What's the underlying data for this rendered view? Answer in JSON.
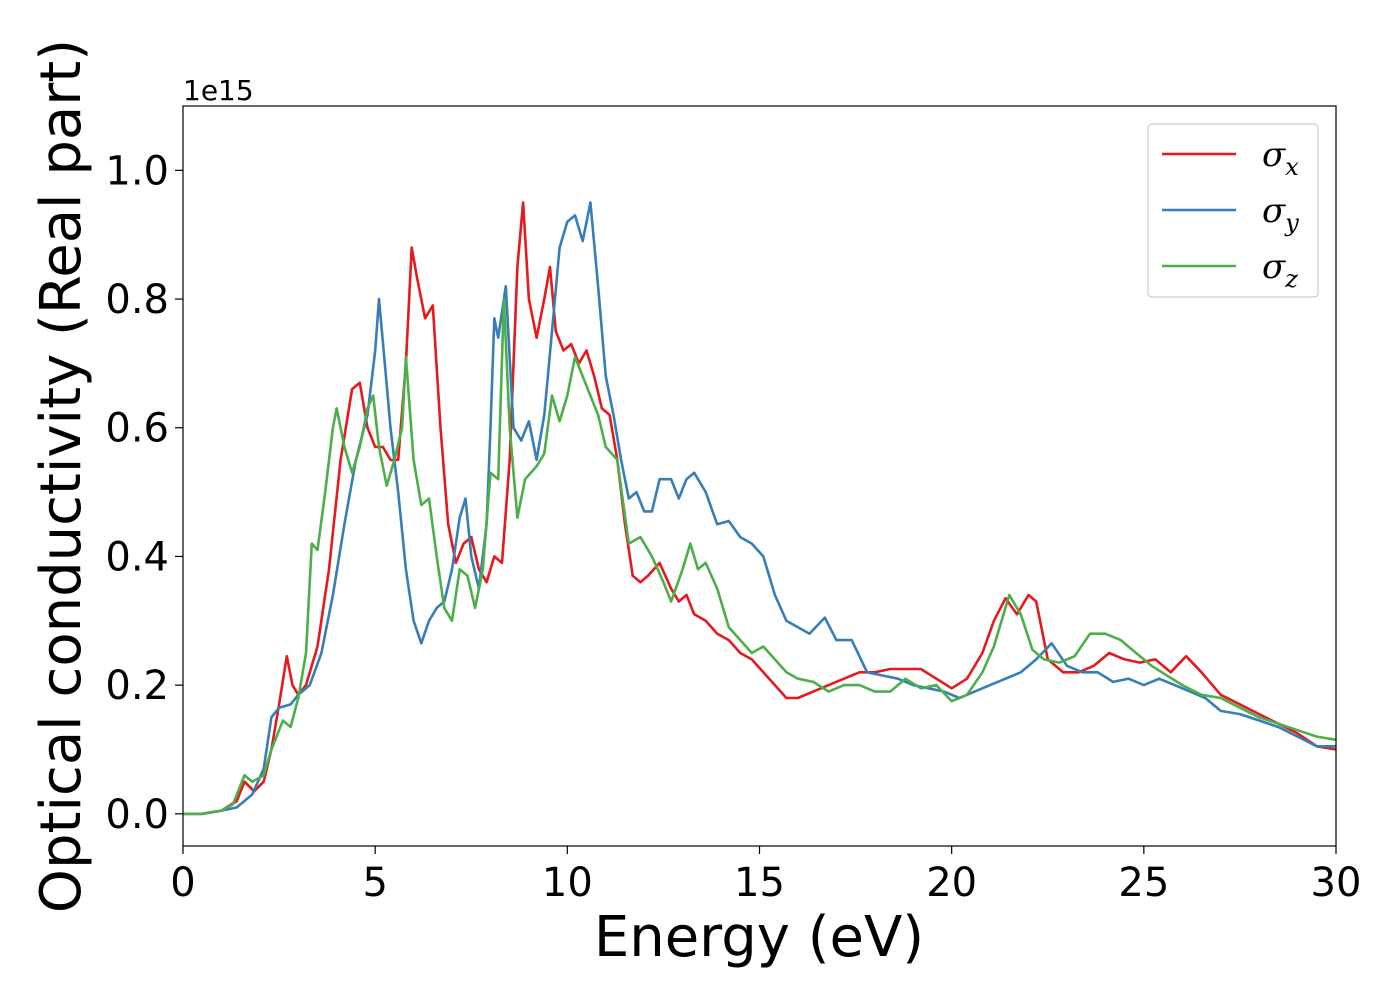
{
  "chart_data": {
    "type": "line",
    "xlabel": "Energy (eV)",
    "ylabel": "Optical conductivity (Real part)",
    "y_offset_label": "1e15",
    "xlim": [
      0,
      30
    ],
    "ylim": [
      -0.05,
      1.1
    ],
    "x_ticks": [
      0,
      5,
      10,
      15,
      20,
      25,
      30
    ],
    "x_tick_labels": [
      "0",
      "5",
      "10",
      "15",
      "20",
      "25",
      "30"
    ],
    "y_ticks": [
      0.0,
      0.2,
      0.4,
      0.6,
      0.8,
      1.0
    ],
    "y_tick_labels": [
      "0.0",
      "0.2",
      "0.4",
      "0.6",
      "0.8",
      "1.0"
    ],
    "grid": false,
    "legend_position": "top-right",
    "series": [
      {
        "name": "σx",
        "symbol": "σ",
        "subscript": "x",
        "color": "#e41a1c",
        "points": [
          [
            0,
            0
          ],
          [
            0.5,
            0
          ],
          [
            1.0,
            0.005
          ],
          [
            1.4,
            0.02
          ],
          [
            1.6,
            0.05
          ],
          [
            1.85,
            0.035
          ],
          [
            2.1,
            0.05
          ],
          [
            2.3,
            0.1
          ],
          [
            2.5,
            0.17
          ],
          [
            2.7,
            0.245
          ],
          [
            2.85,
            0.2
          ],
          [
            3.0,
            0.185
          ],
          [
            3.2,
            0.2
          ],
          [
            3.5,
            0.26
          ],
          [
            3.8,
            0.38
          ],
          [
            4.1,
            0.55
          ],
          [
            4.4,
            0.66
          ],
          [
            4.6,
            0.67
          ],
          [
            4.8,
            0.6
          ],
          [
            5.0,
            0.57
          ],
          [
            5.2,
            0.57
          ],
          [
            5.4,
            0.55
          ],
          [
            5.6,
            0.55
          ],
          [
            5.8,
            0.7
          ],
          [
            5.95,
            0.88
          ],
          [
            6.1,
            0.83
          ],
          [
            6.3,
            0.77
          ],
          [
            6.5,
            0.79
          ],
          [
            6.7,
            0.6
          ],
          [
            6.9,
            0.45
          ],
          [
            7.1,
            0.39
          ],
          [
            7.3,
            0.42
          ],
          [
            7.5,
            0.43
          ],
          [
            7.7,
            0.38
          ],
          [
            7.9,
            0.36
          ],
          [
            8.1,
            0.4
          ],
          [
            8.3,
            0.39
          ],
          [
            8.5,
            0.55
          ],
          [
            8.7,
            0.85
          ],
          [
            8.85,
            0.95
          ],
          [
            9.0,
            0.8
          ],
          [
            9.2,
            0.74
          ],
          [
            9.4,
            0.8
          ],
          [
            9.55,
            0.85
          ],
          [
            9.7,
            0.75
          ],
          [
            9.9,
            0.72
          ],
          [
            10.1,
            0.73
          ],
          [
            10.3,
            0.7
          ],
          [
            10.5,
            0.72
          ],
          [
            10.7,
            0.68
          ],
          [
            10.9,
            0.63
          ],
          [
            11.1,
            0.62
          ],
          [
            11.3,
            0.55
          ],
          [
            11.5,
            0.45
          ],
          [
            11.7,
            0.37
          ],
          [
            11.9,
            0.36
          ],
          [
            12.1,
            0.37
          ],
          [
            12.4,
            0.39
          ],
          [
            12.7,
            0.35
          ],
          [
            12.9,
            0.33
          ],
          [
            13.1,
            0.34
          ],
          [
            13.3,
            0.31
          ],
          [
            13.6,
            0.3
          ],
          [
            13.9,
            0.28
          ],
          [
            14.2,
            0.27
          ],
          [
            14.5,
            0.25
          ],
          [
            14.8,
            0.24
          ],
          [
            15.1,
            0.22
          ],
          [
            15.4,
            0.2
          ],
          [
            15.7,
            0.18
          ],
          [
            16.0,
            0.18
          ],
          [
            16.4,
            0.19
          ],
          [
            16.8,
            0.2
          ],
          [
            17.2,
            0.21
          ],
          [
            17.6,
            0.22
          ],
          [
            18.0,
            0.22
          ],
          [
            18.4,
            0.225
          ],
          [
            18.8,
            0.225
          ],
          [
            19.2,
            0.225
          ],
          [
            19.6,
            0.21
          ],
          [
            20.0,
            0.195
          ],
          [
            20.4,
            0.21
          ],
          [
            20.8,
            0.25
          ],
          [
            21.1,
            0.3
          ],
          [
            21.4,
            0.335
          ],
          [
            21.7,
            0.31
          ],
          [
            22.0,
            0.34
          ],
          [
            22.2,
            0.33
          ],
          [
            22.5,
            0.24
          ],
          [
            22.9,
            0.22
          ],
          [
            23.3,
            0.22
          ],
          [
            23.7,
            0.23
          ],
          [
            24.1,
            0.25
          ],
          [
            24.5,
            0.24
          ],
          [
            24.9,
            0.235
          ],
          [
            25.3,
            0.24
          ],
          [
            25.7,
            0.22
          ],
          [
            26.1,
            0.245
          ],
          [
            26.5,
            0.22
          ],
          [
            27.0,
            0.185
          ],
          [
            27.5,
            0.17
          ],
          [
            28.0,
            0.155
          ],
          [
            28.5,
            0.14
          ],
          [
            29.0,
            0.125
          ],
          [
            29.5,
            0.105
          ],
          [
            30.0,
            0.1
          ]
        ]
      },
      {
        "name": "σy",
        "symbol": "σ",
        "subscript": "y",
        "color": "#377eb8",
        "points": [
          [
            0,
            0
          ],
          [
            0.5,
            0
          ],
          [
            1.0,
            0.005
          ],
          [
            1.4,
            0.01
          ],
          [
            1.8,
            0.03
          ],
          [
            2.1,
            0.07
          ],
          [
            2.3,
            0.15
          ],
          [
            2.5,
            0.165
          ],
          [
            2.8,
            0.17
          ],
          [
            3.0,
            0.185
          ],
          [
            3.3,
            0.2
          ],
          [
            3.6,
            0.25
          ],
          [
            3.9,
            0.34
          ],
          [
            4.2,
            0.45
          ],
          [
            4.5,
            0.55
          ],
          [
            4.8,
            0.62
          ],
          [
            5.0,
            0.72
          ],
          [
            5.1,
            0.8
          ],
          [
            5.25,
            0.7
          ],
          [
            5.4,
            0.6
          ],
          [
            5.6,
            0.5
          ],
          [
            5.8,
            0.38
          ],
          [
            6.0,
            0.3
          ],
          [
            6.2,
            0.265
          ],
          [
            6.4,
            0.3
          ],
          [
            6.6,
            0.32
          ],
          [
            6.8,
            0.33
          ],
          [
            7.0,
            0.38
          ],
          [
            7.2,
            0.46
          ],
          [
            7.35,
            0.49
          ],
          [
            7.5,
            0.4
          ],
          [
            7.7,
            0.35
          ],
          [
            7.9,
            0.45
          ],
          [
            8.0,
            0.6
          ],
          [
            8.1,
            0.77
          ],
          [
            8.2,
            0.74
          ],
          [
            8.4,
            0.82
          ],
          [
            8.6,
            0.6
          ],
          [
            8.8,
            0.58
          ],
          [
            9.0,
            0.61
          ],
          [
            9.2,
            0.55
          ],
          [
            9.4,
            0.62
          ],
          [
            9.6,
            0.75
          ],
          [
            9.8,
            0.88
          ],
          [
            10.0,
            0.92
          ],
          [
            10.2,
            0.93
          ],
          [
            10.4,
            0.89
          ],
          [
            10.6,
            0.95
          ],
          [
            10.8,
            0.82
          ],
          [
            11.0,
            0.68
          ],
          [
            11.2,
            0.62
          ],
          [
            11.4,
            0.55
          ],
          [
            11.6,
            0.49
          ],
          [
            11.8,
            0.5
          ],
          [
            12.0,
            0.47
          ],
          [
            12.2,
            0.47
          ],
          [
            12.4,
            0.52
          ],
          [
            12.7,
            0.52
          ],
          [
            12.9,
            0.49
          ],
          [
            13.1,
            0.52
          ],
          [
            13.3,
            0.53
          ],
          [
            13.6,
            0.5
          ],
          [
            13.9,
            0.45
          ],
          [
            14.2,
            0.455
          ],
          [
            14.5,
            0.43
          ],
          [
            14.8,
            0.42
          ],
          [
            15.1,
            0.4
          ],
          [
            15.4,
            0.34
          ],
          [
            15.7,
            0.3
          ],
          [
            16.0,
            0.29
          ],
          [
            16.3,
            0.28
          ],
          [
            16.7,
            0.305
          ],
          [
            17.0,
            0.27
          ],
          [
            17.4,
            0.27
          ],
          [
            17.8,
            0.22
          ],
          [
            18.2,
            0.215
          ],
          [
            18.6,
            0.21
          ],
          [
            19.0,
            0.2
          ],
          [
            19.4,
            0.195
          ],
          [
            19.8,
            0.19
          ],
          [
            20.2,
            0.18
          ],
          [
            20.6,
            0.19
          ],
          [
            21.0,
            0.2
          ],
          [
            21.4,
            0.21
          ],
          [
            21.8,
            0.22
          ],
          [
            22.2,
            0.24
          ],
          [
            22.6,
            0.265
          ],
          [
            23.0,
            0.23
          ],
          [
            23.4,
            0.22
          ],
          [
            23.8,
            0.22
          ],
          [
            24.2,
            0.205
          ],
          [
            24.6,
            0.21
          ],
          [
            25.0,
            0.2
          ],
          [
            25.4,
            0.21
          ],
          [
            25.8,
            0.2
          ],
          [
            26.2,
            0.19
          ],
          [
            26.6,
            0.18
          ],
          [
            27.0,
            0.16
          ],
          [
            27.5,
            0.155
          ],
          [
            28.0,
            0.145
          ],
          [
            28.5,
            0.135
          ],
          [
            29.0,
            0.12
          ],
          [
            29.5,
            0.105
          ],
          [
            30.0,
            0.105
          ]
        ]
      },
      {
        "name": "σz",
        "symbol": "σ",
        "subscript": "z",
        "color": "#4daf4a",
        "points": [
          [
            0,
            0
          ],
          [
            0.5,
            0
          ],
          [
            1.0,
            0.005
          ],
          [
            1.3,
            0.015
          ],
          [
            1.6,
            0.06
          ],
          [
            1.8,
            0.05
          ],
          [
            2.1,
            0.06
          ],
          [
            2.3,
            0.1
          ],
          [
            2.6,
            0.145
          ],
          [
            2.8,
            0.135
          ],
          [
            3.0,
            0.18
          ],
          [
            3.2,
            0.25
          ],
          [
            3.35,
            0.42
          ],
          [
            3.5,
            0.41
          ],
          [
            3.7,
            0.5
          ],
          [
            3.9,
            0.6
          ],
          [
            4.0,
            0.63
          ],
          [
            4.2,
            0.57
          ],
          [
            4.4,
            0.53
          ],
          [
            4.6,
            0.57
          ],
          [
            4.8,
            0.63
          ],
          [
            4.95,
            0.65
          ],
          [
            5.1,
            0.57
          ],
          [
            5.3,
            0.51
          ],
          [
            5.5,
            0.55
          ],
          [
            5.7,
            0.6
          ],
          [
            5.8,
            0.71
          ],
          [
            6.0,
            0.55
          ],
          [
            6.2,
            0.48
          ],
          [
            6.4,
            0.49
          ],
          [
            6.6,
            0.4
          ],
          [
            6.8,
            0.32
          ],
          [
            7.0,
            0.3
          ],
          [
            7.2,
            0.38
          ],
          [
            7.4,
            0.37
          ],
          [
            7.6,
            0.32
          ],
          [
            7.8,
            0.38
          ],
          [
            8.0,
            0.53
          ],
          [
            8.2,
            0.52
          ],
          [
            8.35,
            0.8
          ],
          [
            8.5,
            0.6
          ],
          [
            8.7,
            0.46
          ],
          [
            8.9,
            0.52
          ],
          [
            9.2,
            0.54
          ],
          [
            9.4,
            0.56
          ],
          [
            9.6,
            0.65
          ],
          [
            9.8,
            0.61
          ],
          [
            10.0,
            0.65
          ],
          [
            10.2,
            0.71
          ],
          [
            10.4,
            0.68
          ],
          [
            10.6,
            0.65
          ],
          [
            10.8,
            0.62
          ],
          [
            11.0,
            0.57
          ],
          [
            11.3,
            0.55
          ],
          [
            11.6,
            0.42
          ],
          [
            11.9,
            0.43
          ],
          [
            12.2,
            0.4
          ],
          [
            12.5,
            0.36
          ],
          [
            12.7,
            0.33
          ],
          [
            13.0,
            0.38
          ],
          [
            13.2,
            0.42
          ],
          [
            13.4,
            0.38
          ],
          [
            13.6,
            0.39
          ],
          [
            13.9,
            0.35
          ],
          [
            14.2,
            0.29
          ],
          [
            14.5,
            0.27
          ],
          [
            14.8,
            0.25
          ],
          [
            15.1,
            0.26
          ],
          [
            15.4,
            0.24
          ],
          [
            15.7,
            0.22
          ],
          [
            16.0,
            0.21
          ],
          [
            16.4,
            0.205
          ],
          [
            16.8,
            0.19
          ],
          [
            17.2,
            0.2
          ],
          [
            17.6,
            0.2
          ],
          [
            18.0,
            0.19
          ],
          [
            18.4,
            0.19
          ],
          [
            18.8,
            0.21
          ],
          [
            19.2,
            0.195
          ],
          [
            19.6,
            0.2
          ],
          [
            20.0,
            0.175
          ],
          [
            20.4,
            0.185
          ],
          [
            20.8,
            0.22
          ],
          [
            21.1,
            0.26
          ],
          [
            21.5,
            0.34
          ],
          [
            21.8,
            0.31
          ],
          [
            22.1,
            0.255
          ],
          [
            22.4,
            0.24
          ],
          [
            22.8,
            0.235
          ],
          [
            23.2,
            0.245
          ],
          [
            23.6,
            0.28
          ],
          [
            24.0,
            0.28
          ],
          [
            24.4,
            0.27
          ],
          [
            24.8,
            0.25
          ],
          [
            25.2,
            0.23
          ],
          [
            25.6,
            0.215
          ],
          [
            26.0,
            0.2
          ],
          [
            26.5,
            0.185
          ],
          [
            27.0,
            0.18
          ],
          [
            27.5,
            0.165
          ],
          [
            28.0,
            0.15
          ],
          [
            28.5,
            0.14
          ],
          [
            29.0,
            0.13
          ],
          [
            29.5,
            0.12
          ],
          [
            30.0,
            0.115
          ]
        ]
      }
    ]
  }
}
